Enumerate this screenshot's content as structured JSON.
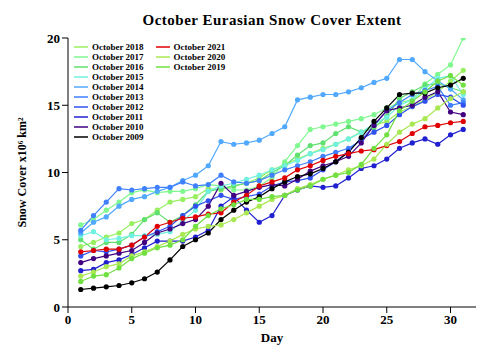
{
  "chart_data": {
    "type": "line",
    "title": "October Eurasian Snow Cover Extent",
    "x_label": "Day",
    "y_label": "Snow Cover x10⁶ km²",
    "x": [
      1,
      2,
      3,
      4,
      5,
      6,
      7,
      8,
      9,
      10,
      11,
      12,
      13,
      14,
      15,
      16,
      17,
      18,
      19,
      20,
      21,
      22,
      23,
      24,
      25,
      26,
      27,
      28,
      29,
      30,
      31
    ],
    "xlim": [
      0,
      32
    ],
    "xticks": [
      0,
      5,
      10,
      15,
      20,
      25,
      30
    ],
    "ylim": [
      0,
      20
    ],
    "yticks": [
      0,
      5,
      10,
      15,
      20
    ],
    "legend": "upper left",
    "marker": "circle",
    "series": [
      {
        "name": "October 2018",
        "color": "#98f060",
        "values": [
          4.5,
          4.8,
          5.2,
          5.5,
          6.2,
          6.5,
          7.2,
          7.8,
          8.0,
          8.2,
          8.8,
          8.7,
          9.0,
          9.2,
          9.6,
          10.2,
          10.6,
          11.0,
          11.4,
          11.8,
          12.1,
          12.5,
          13.0,
          13.5,
          13.8,
          14.5,
          14.9,
          15.4,
          16.0,
          16.8,
          17.6
        ]
      },
      {
        "name": "October 2017",
        "color": "#80f890",
        "values": [
          6.1,
          6.5,
          7.2,
          7.8,
          8.5,
          8.7,
          8.5,
          8.6,
          8.6,
          8.8,
          9.1,
          9.0,
          8.7,
          8.7,
          9.0,
          9.6,
          10.8,
          12.0,
          13.2,
          13.4,
          13.6,
          13.8,
          14.0,
          14.3,
          14.8,
          15.2,
          15.4,
          16.6,
          17.3,
          18.0,
          20.0
        ]
      },
      {
        "name": "October 2016",
        "color": "#60e070",
        "values": [
          5.0,
          4.3,
          4.8,
          4.8,
          5.4,
          6.5,
          7.0,
          6.3,
          6.8,
          7.6,
          8.6,
          8.8,
          9.0,
          9.2,
          9.4,
          10.0,
          10.5,
          11.3,
          12.0,
          12.2,
          12.9,
          13.4,
          13.0,
          13.3,
          14.2,
          15.5,
          16.0,
          16.5,
          16.6,
          16.3,
          16.0
        ]
      },
      {
        "name": "October 2015",
        "color": "#70f0e0",
        "values": [
          5.3,
          5.6,
          5.0,
          5.1,
          5.3,
          5.3,
          5.4,
          5.6,
          6.4,
          7.2,
          8.6,
          9.0,
          9.2,
          9.5,
          9.8,
          10.2,
          10.5,
          10.9,
          11.4,
          11.7,
          12.1,
          12.5,
          13.0,
          13.6,
          14.1,
          15.0,
          15.4,
          16.2,
          17.0,
          17.2,
          15.8
        ]
      },
      {
        "name": "October 2014",
        "color": "#50a8ff",
        "values": [
          5.5,
          6.3,
          6.7,
          7.5,
          8.0,
          8.2,
          8.6,
          8.9,
          9.4,
          9.8,
          10.5,
          12.3,
          12.1,
          12.2,
          12.4,
          12.9,
          13.4,
          15.4,
          15.6,
          15.8,
          15.8,
          16.0,
          16.3,
          16.7,
          17.0,
          18.4,
          18.4,
          17.5,
          16.8,
          16.2,
          15.4
        ]
      },
      {
        "name": "October 2013",
        "color": "#4080ff",
        "values": [
          5.7,
          6.8,
          7.8,
          8.8,
          8.7,
          8.8,
          8.9,
          8.9,
          9.3,
          9.0,
          9.1,
          9.8,
          9.3,
          9.2,
          9.4,
          9.8,
          10.2,
          10.5,
          10.8,
          11.2,
          11.5,
          11.8,
          12.4,
          13.5,
          14.6,
          15.2,
          15.8,
          16.1,
          16.4,
          15.0,
          15.2
        ]
      },
      {
        "name": "October 2012",
        "color": "#3050f0",
        "values": [
          3.8,
          4.2,
          4.1,
          4.3,
          4.6,
          5.2,
          5.6,
          6.0,
          6.8,
          7.5,
          7.9,
          8.3,
          8.0,
          8.2,
          8.4,
          9.0,
          9.3,
          9.4,
          9.6,
          10.2,
          10.8,
          11.6,
          12.5,
          13.0,
          13.5,
          14.3,
          14.9,
          15.3,
          15.8,
          15.6,
          15.0
        ]
      },
      {
        "name": "October 2011",
        "color": "#2020d0",
        "values": [
          2.7,
          2.8,
          3.3,
          3.5,
          3.9,
          4.4,
          4.9,
          4.9,
          4.9,
          5.2,
          5.7,
          7.5,
          8.2,
          7.2,
          6.3,
          6.8,
          8.3,
          8.7,
          9.0,
          8.9,
          9.0,
          9.6,
          10.3,
          10.5,
          11.0,
          11.8,
          12.2,
          12.5,
          12.1,
          12.8,
          13.2
        ]
      },
      {
        "name": "October 2010",
        "color": "#400080",
        "values": [
          3.3,
          3.6,
          3.8,
          4.0,
          4.2,
          4.8,
          5.5,
          5.8,
          6.2,
          6.5,
          7.5,
          9.2,
          8.3,
          8.6,
          8.9,
          9.1,
          9.0,
          9.5,
          10.1,
          10.5,
          10.8,
          11.2,
          12.2,
          13.5,
          14.6,
          14.8,
          15.0,
          15.6,
          16.0,
          14.5,
          14.3
        ]
      },
      {
        "name": "October 2009",
        "color": "#000000",
        "values": [
          1.3,
          1.4,
          1.5,
          1.6,
          1.8,
          2.1,
          2.6,
          3.5,
          4.5,
          5.0,
          5.5,
          6.5,
          7.2,
          7.8,
          8.2,
          8.8,
          9.3,
          9.7,
          9.9,
          10.3,
          10.8,
          11.5,
          12.6,
          13.8,
          14.8,
          15.8,
          15.9,
          15.9,
          16.3,
          16.5,
          17.0
        ]
      },
      {
        "name": "October 2021",
        "color": "#e00000",
        "values": [
          4.1,
          4.2,
          4.3,
          4.3,
          4.6,
          5.2,
          6.0,
          6.3,
          6.6,
          6.7,
          6.9,
          7.0,
          7.8,
          8.3,
          9.0,
          9.3,
          9.6,
          10.2,
          10.5,
          10.9,
          11.2,
          11.4,
          11.6,
          11.7,
          12.0,
          12.3,
          12.9,
          13.4,
          13.5,
          13.7,
          13.8
        ]
      },
      {
        "name": "October 2020",
        "color": "#a8e850",
        "values": [
          2.3,
          2.6,
          3.0,
          3.2,
          3.8,
          4.1,
          4.5,
          4.9,
          5.4,
          5.8,
          6.0,
          6.1,
          6.5,
          7.0,
          7.5,
          8.0,
          8.3,
          8.8,
          9.1,
          9.5,
          9.8,
          10.2,
          10.5,
          11.0,
          12.1,
          13.0,
          13.6,
          14.0,
          14.8,
          15.5,
          16.0
        ]
      },
      {
        "name": "October 2019",
        "color": "#70e040",
        "values": [
          1.9,
          2.3,
          2.4,
          2.9,
          3.6,
          4.0,
          4.4,
          4.6,
          5.0,
          6.0,
          6.8,
          7.3,
          7.6,
          8.0,
          8.0,
          8.2,
          8.3,
          8.7,
          9.0,
          9.5,
          9.8,
          10.0,
          10.6,
          11.8,
          12.8,
          14.6,
          15.3,
          16.0,
          16.8,
          17.2,
          16.5
        ]
      }
    ]
  }
}
